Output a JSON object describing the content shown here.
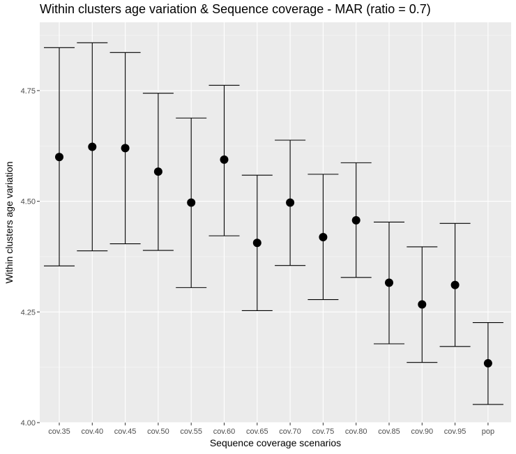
{
  "chart_data": {
    "type": "errorbar",
    "title": "Within clusters age variation & Sequence coverage - MAR (ratio = 0.7)",
    "xlabel": "Sequence coverage scenarios",
    "ylabel": "Within clusters age variation",
    "categories": [
      "cov.35",
      "cov.40",
      "cov.45",
      "cov.50",
      "cov.55",
      "cov.60",
      "cov.65",
      "cov.70",
      "cov.75",
      "cov.80",
      "cov.85",
      "cov.90",
      "cov.95",
      "pop"
    ],
    "values": [
      4.6,
      4.623,
      4.62,
      4.567,
      4.497,
      4.594,
      4.406,
      4.497,
      4.419,
      4.457,
      4.316,
      4.267,
      4.311,
      4.134
    ],
    "lower": [
      4.354,
      4.388,
      4.404,
      4.389,
      4.305,
      4.422,
      4.253,
      4.355,
      4.278,
      4.328,
      4.178,
      4.136,
      4.172,
      4.041
    ],
    "upper": [
      4.847,
      4.858,
      4.836,
      4.744,
      4.688,
      4.762,
      4.559,
      4.638,
      4.561,
      4.587,
      4.453,
      4.397,
      4.45,
      4.226
    ],
    "ylim": [
      4.0,
      4.9
    ],
    "yticks": [
      4.0,
      4.25,
      4.5,
      4.75
    ],
    "ytick_labels": [
      "4.00",
      "4.25",
      "4.50",
      "4.75"
    ],
    "grid": true,
    "colors": {
      "panel": "#ebebeb",
      "grid_major": "#ffffff",
      "marks": "#000000",
      "tick_text": "#4d4d4d"
    }
  }
}
